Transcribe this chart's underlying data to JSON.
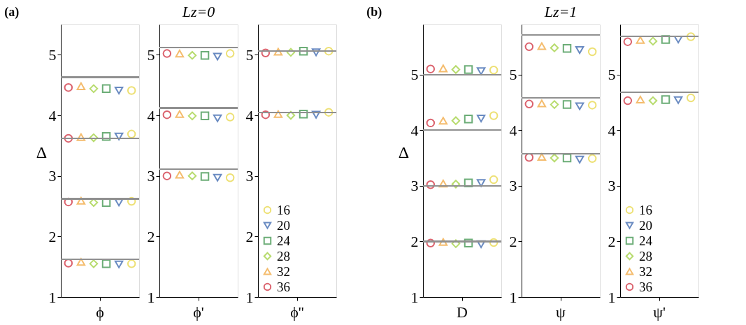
{
  "chart_data": [
    {
      "type": "scatter",
      "title": "(a)",
      "ylabel": "Δ",
      "categories": [
        "ϕ"
      ],
      "ylim": [
        1,
        5.5
      ],
      "yticks": [
        1,
        2,
        3,
        4,
        5
      ],
      "legend": false,
      "grid": false,
      "ref_lines": [
        {
          "axis": "y",
          "value": 4.63,
          "color": "#909090"
        },
        {
          "axis": "y",
          "value": 3.62,
          "color": "#909090"
        },
        {
          "axis": "y",
          "value": 2.62,
          "color": "#909090"
        },
        {
          "axis": "y",
          "value": 1.62,
          "color": "#909090"
        }
      ],
      "series": [
        {
          "color": "#e6d43a",
          "marker": "circle",
          "x": [
            "ϕ",
            "ϕ",
            "ϕ",
            "ϕ"
          ],
          "values": [
            4.41,
            3.69,
            2.58,
            1.55
          ]
        },
        {
          "color": "#2a5aa8",
          "marker": "triangle-down",
          "x": [
            "ϕ",
            "ϕ",
            "ϕ",
            "ϕ"
          ],
          "values": [
            4.41,
            3.65,
            2.56,
            1.54
          ]
        },
        {
          "color": "#2e8b3e",
          "marker": "square",
          "x": [
            "ϕ",
            "ϕ",
            "ϕ",
            "ϕ"
          ],
          "values": [
            4.44,
            3.65,
            2.56,
            1.55
          ]
        },
        {
          "color": "#9acd32",
          "marker": "diamond",
          "x": [
            "ϕ",
            "ϕ",
            "ϕ",
            "ϕ"
          ],
          "values": [
            4.44,
            3.63,
            2.56,
            1.55
          ]
        },
        {
          "color": "#f0a030",
          "marker": "triangle",
          "x": [
            "ϕ",
            "ϕ",
            "ϕ",
            "ϕ"
          ],
          "values": [
            4.48,
            3.64,
            2.59,
            1.58
          ]
        },
        {
          "color": "#cc2030",
          "marker": "circle",
          "x": [
            "ϕ",
            "ϕ",
            "ϕ",
            "ϕ"
          ],
          "values": [
            4.46,
            3.62,
            2.57,
            1.56
          ]
        }
      ]
    },
    {
      "type": "scatter",
      "title": "Lz=0",
      "categories": [
        "ϕ'"
      ],
      "ylim": [
        1,
        5.5
      ],
      "yticks": [
        1,
        2,
        3,
        4,
        5
      ],
      "legend": false,
      "grid": false,
      "ref_lines": [
        {
          "axis": "y",
          "value": 5.12,
          "color": "#909090"
        },
        {
          "axis": "y",
          "value": 4.12,
          "color": "#909090"
        },
        {
          "axis": "y",
          "value": 3.11,
          "color": "#909090"
        }
      ],
      "series": [
        {
          "color": "#e6d43a",
          "marker": "circle",
          "x": [
            "ϕ'",
            "ϕ'",
            "ϕ'"
          ],
          "values": [
            5.02,
            3.97,
            2.97
          ]
        },
        {
          "color": "#2a5aa8",
          "marker": "triangle-down",
          "x": [
            "ϕ'",
            "ϕ'",
            "ϕ'"
          ],
          "values": [
            4.97,
            3.95,
            2.97
          ]
        },
        {
          "color": "#2e8b3e",
          "marker": "square",
          "x": [
            "ϕ'",
            "ϕ'",
            "ϕ'"
          ],
          "values": [
            4.99,
            3.99,
            2.99
          ]
        },
        {
          "color": "#9acd32",
          "marker": "diamond",
          "x": [
            "ϕ'",
            "ϕ'",
            "ϕ'"
          ],
          "values": [
            4.99,
            3.99,
            3.0
          ]
        },
        {
          "color": "#f0a030",
          "marker": "triangle",
          "x": [
            "ϕ'",
            "ϕ'",
            "ϕ'"
          ],
          "values": [
            5.02,
            4.02,
            3.02
          ]
        },
        {
          "color": "#cc2030",
          "marker": "circle",
          "x": [
            "ϕ'",
            "ϕ'",
            "ϕ'"
          ],
          "values": [
            5.02,
            4.01,
            3.0
          ]
        }
      ]
    },
    {
      "type": "scatter",
      "categories": [
        "ϕ''"
      ],
      "ylim": [
        1,
        5.5
      ],
      "yticks": [
        1,
        2,
        3,
        4,
        5
      ],
      "legend": "bottom left",
      "grid": false,
      "ref_lines": [
        {
          "axis": "y",
          "value": 5.06,
          "color": "#909090"
        },
        {
          "axis": "y",
          "value": 4.05,
          "color": "#909090"
        }
      ],
      "series": [
        {
          "name": "16",
          "color": "#e6d43a",
          "marker": "circle",
          "x": [
            "ϕ''",
            "ϕ''"
          ],
          "values": [
            5.06,
            4.05
          ]
        },
        {
          "name": "20",
          "color": "#2a5aa8",
          "marker": "triangle-down",
          "x": [
            "ϕ''",
            "ϕ''"
          ],
          "values": [
            5.04,
            4.01
          ]
        },
        {
          "name": "24",
          "color": "#2e8b3e",
          "marker": "square",
          "x": [
            "ϕ''",
            "ϕ''"
          ],
          "values": [
            5.06,
            4.02
          ]
        },
        {
          "name": "28",
          "color": "#9acd32",
          "marker": "diamond",
          "x": [
            "ϕ''",
            "ϕ''"
          ],
          "values": [
            5.04,
            4.0
          ]
        },
        {
          "name": "32",
          "color": "#f0a030",
          "marker": "triangle",
          "x": [
            "ϕ''",
            "ϕ''"
          ],
          "values": [
            5.05,
            4.02
          ]
        },
        {
          "name": "36",
          "color": "#cc2030",
          "marker": "circle",
          "x": [
            "ϕ''",
            "ϕ''"
          ],
          "values": [
            5.03,
            4.01
          ]
        }
      ]
    },
    {
      "type": "scatter",
      "title": "(b)",
      "ylabel": "Δ",
      "categories": [
        "D"
      ],
      "ylim": [
        1,
        5.9
      ],
      "yticks": [
        1,
        2,
        3,
        4,
        5
      ],
      "legend": false,
      "grid": false,
      "ref_lines": [
        {
          "axis": "y",
          "value": 5,
          "color": "#909090"
        },
        {
          "axis": "y",
          "value": 4,
          "color": "#909090"
        },
        {
          "axis": "y",
          "value": 3,
          "color": "#909090"
        },
        {
          "axis": "y",
          "value": 2,
          "color": "#909090"
        }
      ],
      "series": [
        {
          "color": "#e6d43a",
          "marker": "circle",
          "x": [
            "D",
            "D",
            "D",
            "D"
          ],
          "values": [
            5.08,
            4.26,
            3.11,
            1.98
          ]
        },
        {
          "color": "#2a5aa8",
          "marker": "triangle-down",
          "x": [
            "D",
            "D",
            "D",
            "D"
          ],
          "values": [
            5.06,
            4.21,
            3.05,
            1.95
          ]
        },
        {
          "color": "#2e8b3e",
          "marker": "square",
          "x": [
            "D",
            "D",
            "D",
            "D"
          ],
          "values": [
            5.09,
            4.2,
            3.05,
            1.97
          ]
        },
        {
          "color": "#9acd32",
          "marker": "diamond",
          "x": [
            "D",
            "D",
            "D",
            "D"
          ],
          "values": [
            5.09,
            4.17,
            3.03,
            1.96
          ]
        },
        {
          "color": "#f0a030",
          "marker": "triangle",
          "x": [
            "D",
            "D",
            "D",
            "D"
          ],
          "values": [
            5.11,
            4.17,
            3.04,
            1.99
          ]
        },
        {
          "color": "#cc2030",
          "marker": "circle",
          "x": [
            "D",
            "D",
            "D",
            "D"
          ],
          "values": [
            5.1,
            4.13,
            3.02,
            1.97
          ]
        }
      ]
    },
    {
      "type": "scatter",
      "title": "Lz=1",
      "categories": [
        "ψ"
      ],
      "ylim": [
        1,
        5.9
      ],
      "yticks": [
        1,
        2,
        3,
        4,
        5
      ],
      "legend": false,
      "grid": false,
      "ref_lines": [
        {
          "axis": "y",
          "value": 5.71,
          "color": "#909090"
        },
        {
          "axis": "y",
          "value": 4.58,
          "color": "#909090"
        },
        {
          "axis": "y",
          "value": 3.58,
          "color": "#909090"
        }
      ],
      "series": [
        {
          "color": "#e6d43a",
          "marker": "circle",
          "x": [
            "ψ",
            "ψ",
            "ψ"
          ],
          "values": [
            5.41,
            4.45,
            3.49
          ]
        },
        {
          "color": "#2a5aa8",
          "marker": "triangle-down",
          "x": [
            "ψ",
            "ψ",
            "ψ"
          ],
          "values": [
            5.44,
            4.43,
            3.47
          ]
        },
        {
          "color": "#2e8b3e",
          "marker": "square",
          "x": [
            "ψ",
            "ψ",
            "ψ"
          ],
          "values": [
            5.47,
            4.46,
            3.5
          ]
        },
        {
          "color": "#9acd32",
          "marker": "diamond",
          "x": [
            "ψ",
            "ψ",
            "ψ"
          ],
          "values": [
            5.48,
            4.46,
            3.5
          ]
        },
        {
          "color": "#f0a030",
          "marker": "triangle",
          "x": [
            "ψ",
            "ψ",
            "ψ"
          ],
          "values": [
            5.51,
            4.48,
            3.52
          ]
        },
        {
          "color": "#cc2030",
          "marker": "circle",
          "x": [
            "ψ",
            "ψ",
            "ψ"
          ],
          "values": [
            5.5,
            4.47,
            3.51
          ]
        }
      ]
    },
    {
      "type": "scatter",
      "categories": [
        "ψ'"
      ],
      "ylim": [
        1,
        5.9
      ],
      "yticks": [
        1,
        2,
        3,
        4,
        5
      ],
      "legend": "bottom left",
      "grid": false,
      "ref_lines": [
        {
          "axis": "y",
          "value": 5.69,
          "color": "#909090"
        },
        {
          "axis": "y",
          "value": 4.68,
          "color": "#909090"
        }
      ],
      "series": [
        {
          "name": "16",
          "color": "#e6d43a",
          "marker": "circle",
          "x": [
            "ψ'",
            "ψ'"
          ],
          "values": [
            5.68,
            4.58
          ]
        },
        {
          "name": "20",
          "color": "#2a5aa8",
          "marker": "triangle-down",
          "x": [
            "ψ'",
            "ψ'"
          ],
          "values": [
            5.63,
            4.54
          ]
        },
        {
          "name": "24",
          "color": "#2e8b3e",
          "marker": "square",
          "x": [
            "ψ'",
            "ψ'"
          ],
          "values": [
            5.63,
            4.55
          ]
        },
        {
          "name": "28",
          "color": "#9acd32",
          "marker": "diamond",
          "x": [
            "ψ'",
            "ψ'"
          ],
          "values": [
            5.6,
            4.53
          ]
        },
        {
          "name": "32",
          "color": "#f0a030",
          "marker": "triangle",
          "x": [
            "ψ'",
            "ψ'"
          ],
          "values": [
            5.62,
            4.55
          ]
        },
        {
          "name": "36",
          "color": "#cc2030",
          "marker": "circle",
          "x": [
            "ψ'",
            "ψ'"
          ],
          "values": [
            5.59,
            4.53
          ]
        }
      ]
    }
  ]
}
